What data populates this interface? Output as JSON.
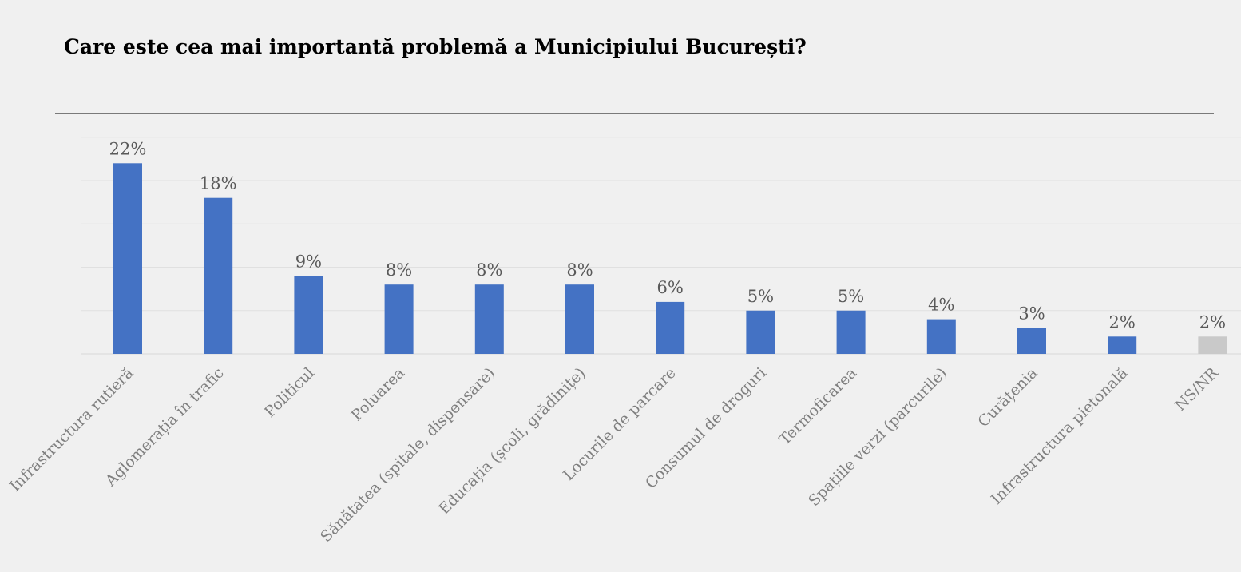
{
  "title": "Care este cea mai importantă problemă a Municipiului București?",
  "chart_data": {
    "type": "bar",
    "title": "Care este cea mai importantă problemă a Municipiului București?",
    "xlabel": "",
    "ylabel": "",
    "categories": [
      "Infrastructura rutieră",
      "Aglomerația în trafic",
      "Politicul",
      "Poluarea",
      "Sănătatea (spitale, dispensare)",
      "Educația (școli, grădinițe)",
      "Locurile de parcare",
      "Consumul de droguri",
      "Termoficarea",
      "Spațiile verzi (parcurile)",
      "Curățenia",
      "Infrastructura pietonală",
      "NS/NR"
    ],
    "values": [
      22,
      18,
      9,
      8,
      8,
      8,
      6,
      5,
      5,
      4,
      3,
      2,
      2
    ],
    "value_labels": [
      "22%",
      "18%",
      "9%",
      "8%",
      "8%",
      "8%",
      "6%",
      "5%",
      "5%",
      "4%",
      "3%",
      "2%",
      "2%"
    ],
    "bar_colors": [
      "#4472c4",
      "#4472c4",
      "#4472c4",
      "#4472c4",
      "#4472c4",
      "#4472c4",
      "#4472c4",
      "#4472c4",
      "#4472c4",
      "#4472c4",
      "#4472c4",
      "#4472c4",
      "#c9c9c9"
    ],
    "ylim": [
      0,
      25
    ],
    "grid": true,
    "legend": "none"
  }
}
